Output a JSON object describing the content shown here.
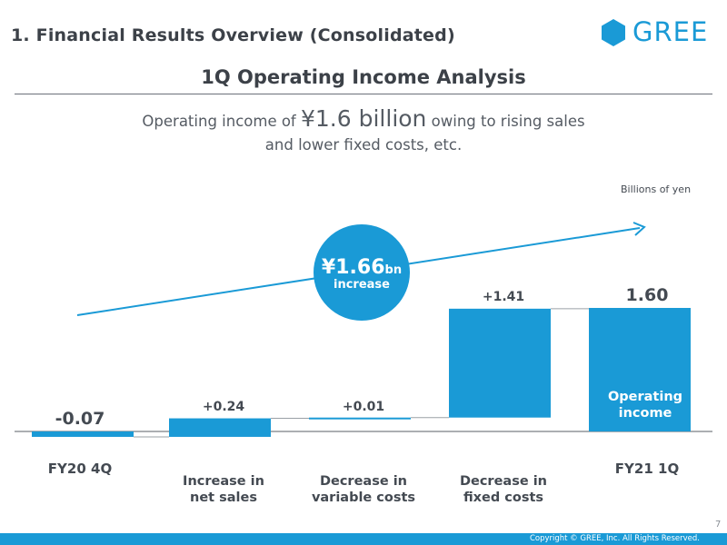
{
  "header": {
    "page_title": "1. Financial Results Overview (Consolidated)",
    "logo_text": "GREE",
    "subtitle": "1Q Operating Income Analysis"
  },
  "headline": {
    "prefix": "Operating income of ",
    "emphasis": "¥1.6 billion",
    "suffix": " owing to rising sales",
    "line2": "and lower fixed costs, etc."
  },
  "colors": {
    "accent": "#1a9ad6",
    "text": "#444a52"
  },
  "chart_data": {
    "type": "bar",
    "subtype": "waterfall",
    "units": "Billions of yen",
    "categories": [
      "FY20 4Q",
      "Increase in net sales",
      "Decrease in variable costs",
      "Decrease in fixed costs",
      "FY21 1Q"
    ],
    "category_label_lines": [
      [
        "FY20 4Q"
      ],
      [
        "Increase in",
        "net sales"
      ],
      [
        "Decrease in",
        "variable costs"
      ],
      [
        "Decrease in",
        "fixed costs"
      ],
      [
        "FY21 1Q"
      ]
    ],
    "values": [
      -0.07,
      0.24,
      0.01,
      1.41,
      1.6
    ],
    "value_labels": [
      "-0.07",
      "+0.24",
      "+0.01",
      "+1.41",
      "1.60"
    ],
    "bar_kinds": [
      "total",
      "delta",
      "delta",
      "delta",
      "total"
    ],
    "final_bar_label_lines": [
      "Operating",
      "income"
    ],
    "callout": {
      "amount": "¥1.66",
      "unit": "bn",
      "text": "increase"
    },
    "trend_arrow": true
  },
  "footer": {
    "page_number": "7",
    "copyright": "Copyright © GREE, Inc. All Rights Reserved."
  }
}
